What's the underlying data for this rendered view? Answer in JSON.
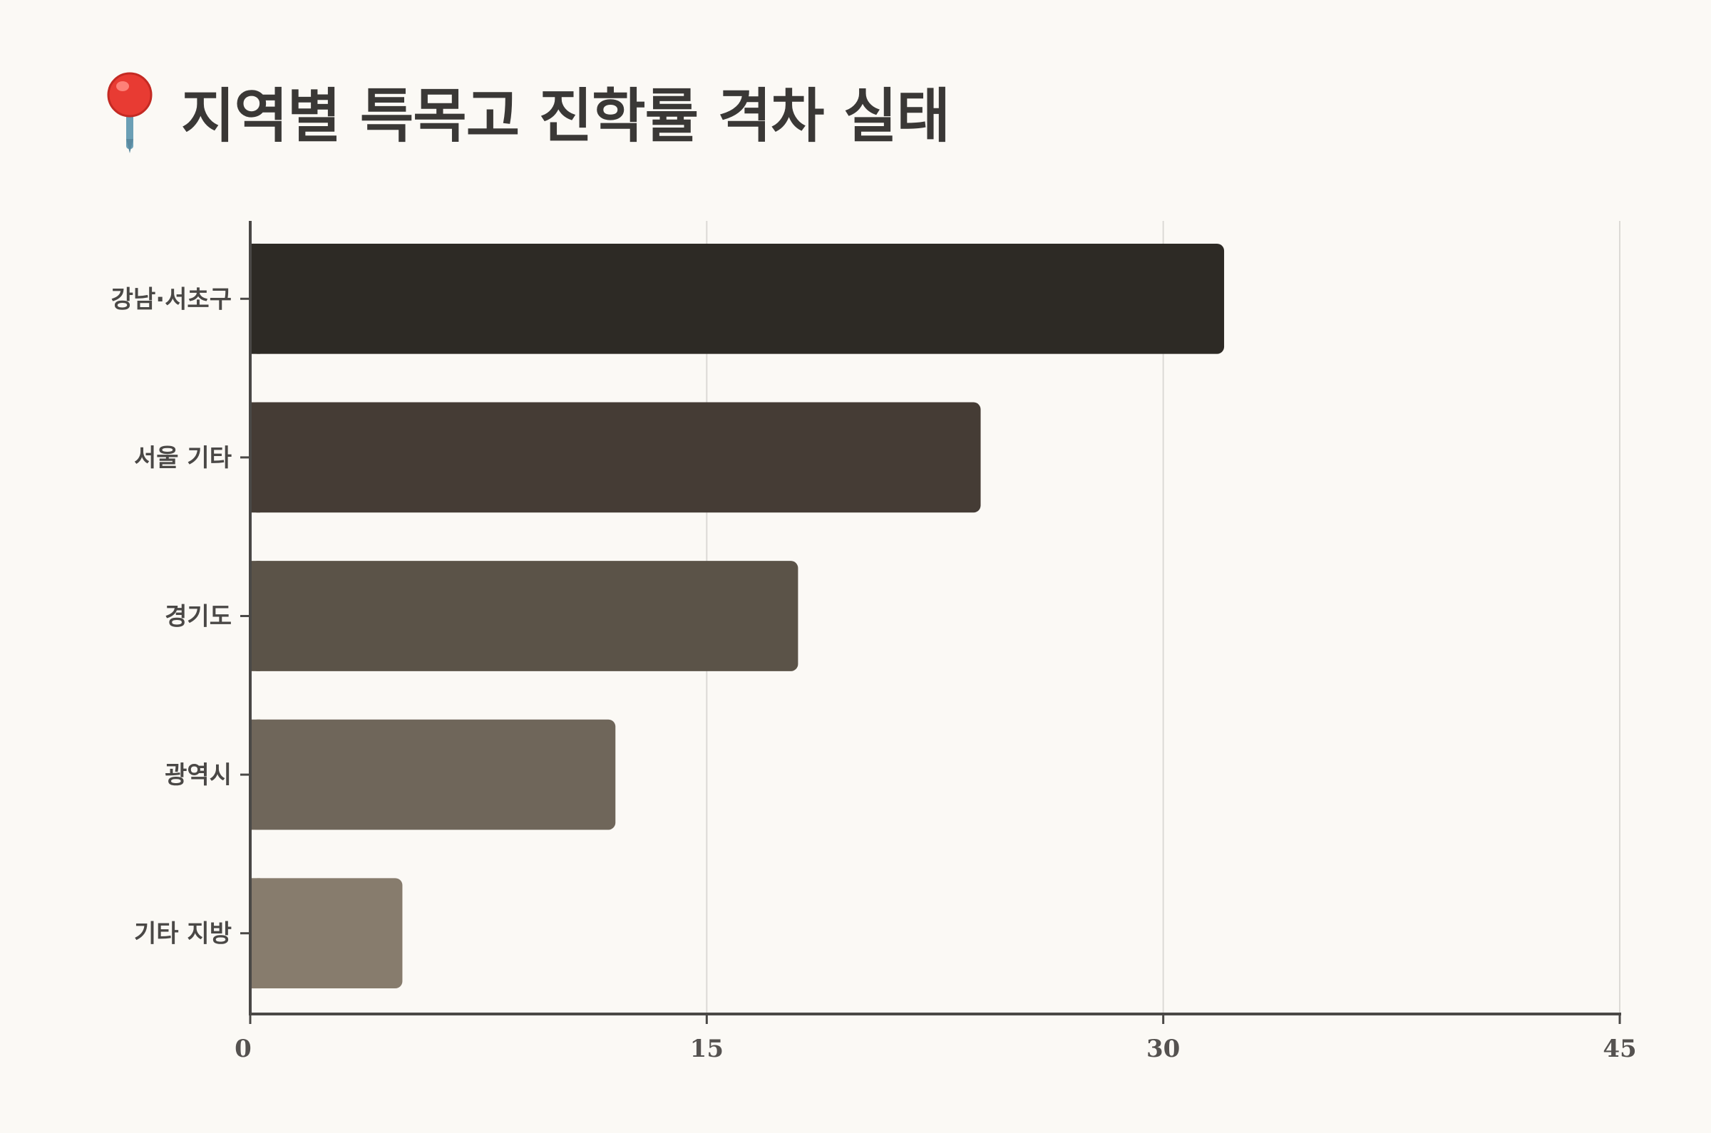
{
  "title": "지역별 특목고 진학률 격차 실태",
  "title_icon": "round-pushpin-icon",
  "chart_data": {
    "type": "bar",
    "orientation": "horizontal",
    "title": "지역별 특목고 진학률 격차 실태",
    "categories": [
      "강남·서초구",
      "서울 기타",
      "경기도",
      "광역시",
      "기타 지방"
    ],
    "values": [
      32,
      24,
      18,
      12,
      5
    ],
    "xlabel": "",
    "ylabel": "",
    "xlim": [
      0,
      45
    ],
    "xticks": [
      "0",
      "15",
      "30",
      "45"
    ],
    "grid": "vertical",
    "legend": "none",
    "colors": [
      "#2d2a25",
      "#453c35",
      "#5b5348",
      "#6f665a",
      "#877c6d"
    ]
  },
  "colors": {
    "background": "#fbf9f5",
    "axis": "#4a4846",
    "grid": "#dcdad6",
    "title": "#3a3836"
  }
}
